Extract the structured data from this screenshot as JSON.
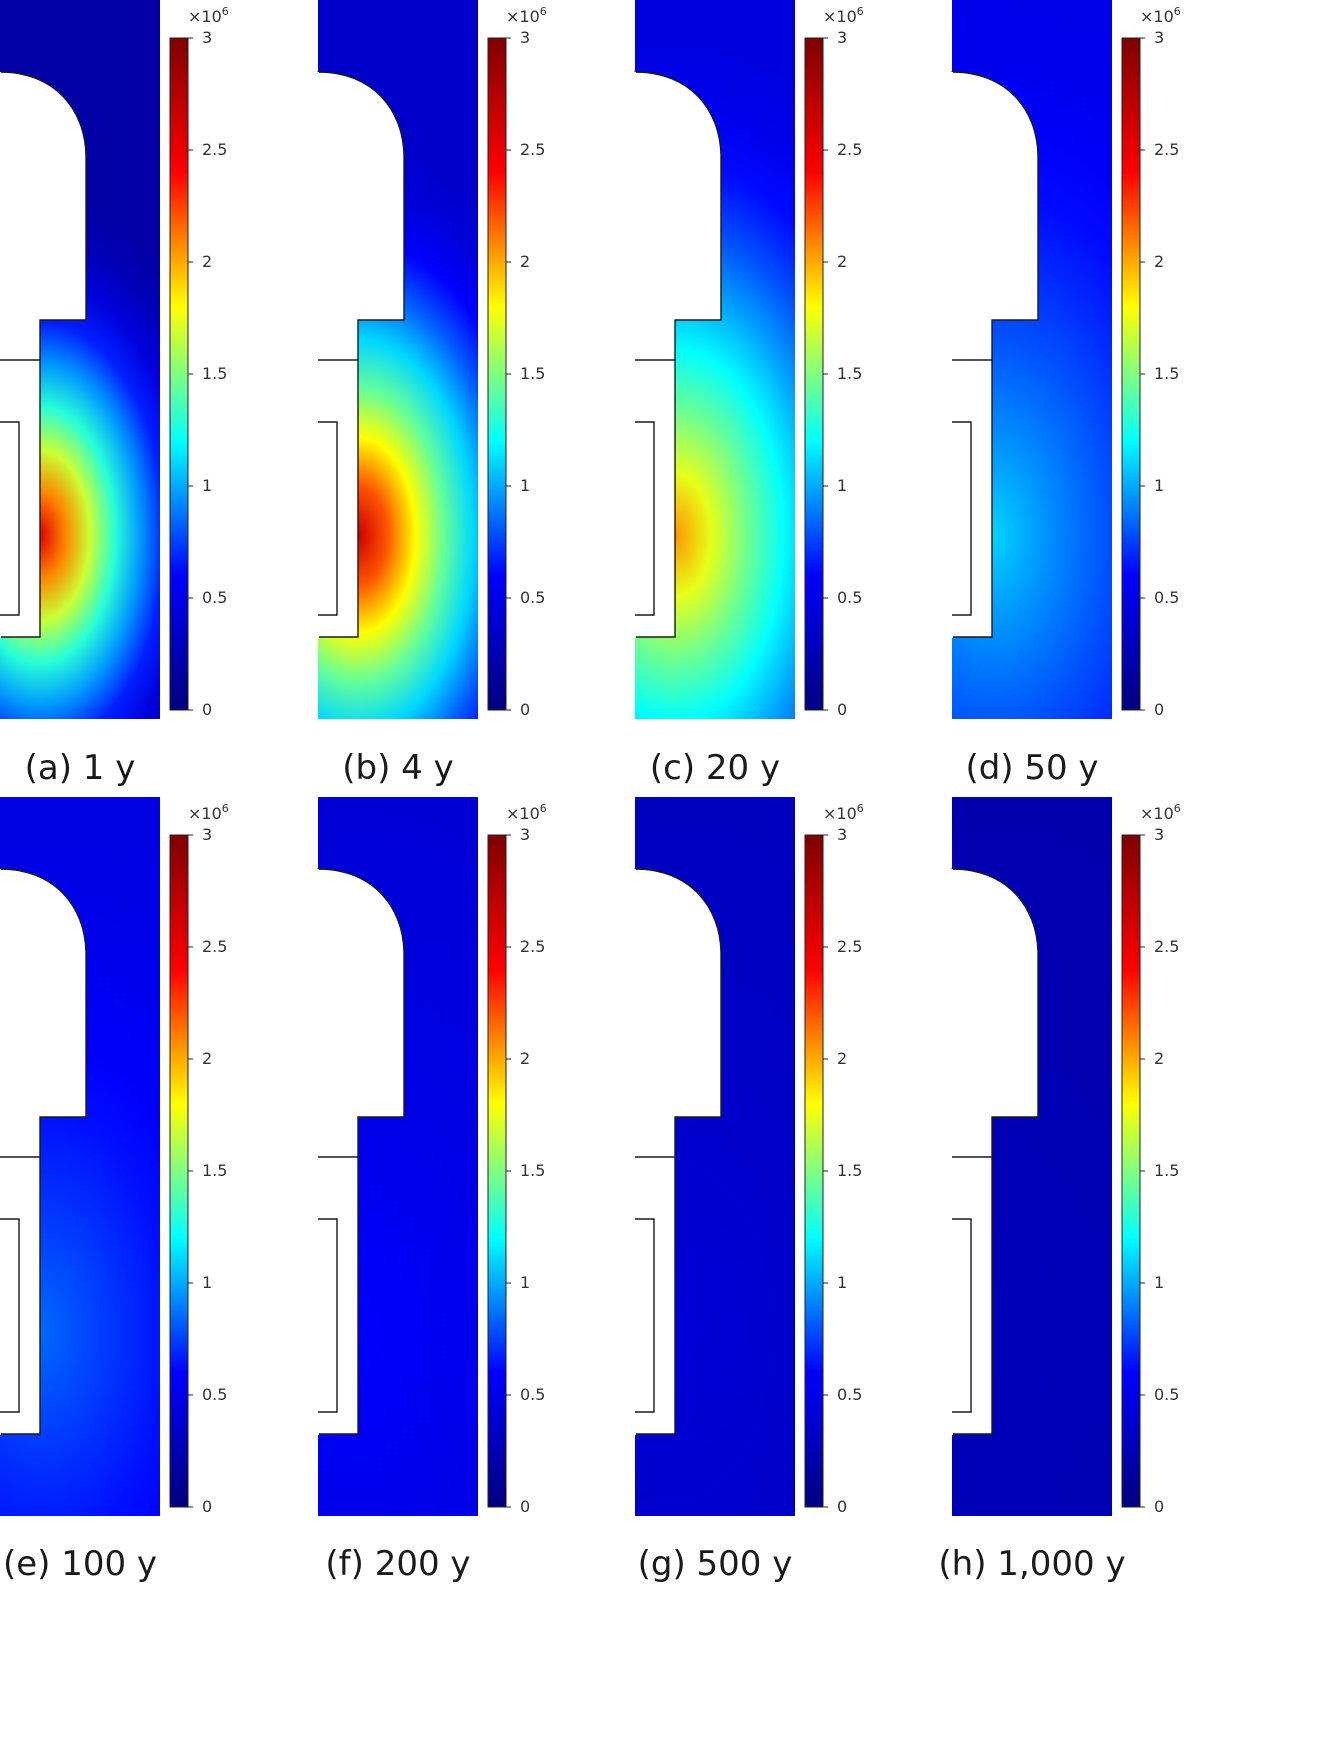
{
  "chart_data": {
    "type": "heatmap",
    "colormap": [
      "#00007f",
      "#0000ff",
      "#00ffff",
      "#ffff00",
      "#ff0000",
      "#7f0000"
    ],
    "colorbar": {
      "min": 0,
      "max": 3,
      "multiplier": "×10",
      "exponent": "6",
      "ticks": [
        {
          "value": 0,
          "label": "0"
        },
        {
          "value": 0.5,
          "label": "0.5"
        },
        {
          "value": 1,
          "label": "1"
        },
        {
          "value": 1.5,
          "label": "1.5"
        },
        {
          "value": 2,
          "label": "2"
        },
        {
          "value": 2.5,
          "label": "2.5"
        },
        {
          "value": 3,
          "label": "3"
        }
      ]
    },
    "panels": [
      {
        "caption": "(a) 1 y",
        "background": 0.18,
        "peak": 2.55,
        "spread": 1.0
      },
      {
        "caption": "(b) 4 y",
        "background": 0.35,
        "peak": 2.65,
        "spread": 1.15
      },
      {
        "caption": "(c) 20 y",
        "background": 0.45,
        "peak": 2.05,
        "spread": 1.45
      },
      {
        "caption": "(d) 50 y",
        "background": 0.5,
        "peak": 1.1,
        "spread": 1.6
      },
      {
        "caption": "(e) 100 y",
        "background": 0.45,
        "peak": 0.85,
        "spread": 1.7
      },
      {
        "caption": "(f) 200 y",
        "background": 0.4,
        "peak": 0.6,
        "spread": 1.8
      },
      {
        "caption": "(g) 500 y",
        "background": 0.3,
        "peak": 0.42,
        "spread": 1.9
      },
      {
        "caption": "(h) 1,000 y",
        "background": 0.22,
        "peak": 0.28,
        "spread": 2.0
      }
    ]
  }
}
